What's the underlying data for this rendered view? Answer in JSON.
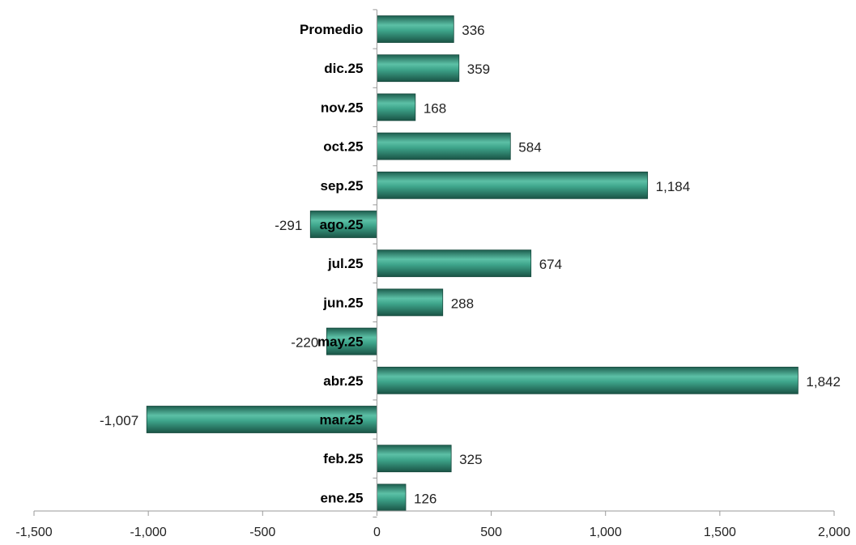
{
  "chart_data": {
    "type": "bar",
    "orientation": "horizontal",
    "categories": [
      "Promedio",
      "dic.25",
      "nov.25",
      "oct.25",
      "sep.25",
      "ago.25",
      "jul.25",
      "jun.25",
      "may.25",
      "abr.25",
      "mar.25",
      "feb.25",
      "ene.25"
    ],
    "values": [
      336,
      359,
      168,
      584,
      1184,
      -291,
      674,
      288,
      -220,
      1842,
      -1007,
      325,
      126
    ],
    "value_labels": [
      "336",
      "359",
      "168",
      "584",
      "1,184",
      "-291",
      "674",
      "288",
      "-220",
      "1,842",
      "-1,007",
      "325",
      "126"
    ],
    "xlim": [
      -1500,
      2000
    ],
    "xticks": [
      -1500,
      -1000,
      -500,
      0,
      500,
      1000,
      1500,
      2000
    ],
    "xtick_labels": [
      "-1,500",
      "-1,000",
      "-500",
      "0",
      "500",
      "1,000",
      "1,500",
      "2,000"
    ],
    "title": "",
    "xlabel": "",
    "ylabel": "",
    "grid": false,
    "legend": "none",
    "colors": {
      "bar_fill": "#3aa088",
      "bar_light": "#5fc4aa",
      "bar_dark": "#1a5c4c",
      "bar_stroke": "#16493d",
      "axis": "#9a9a9a"
    }
  }
}
